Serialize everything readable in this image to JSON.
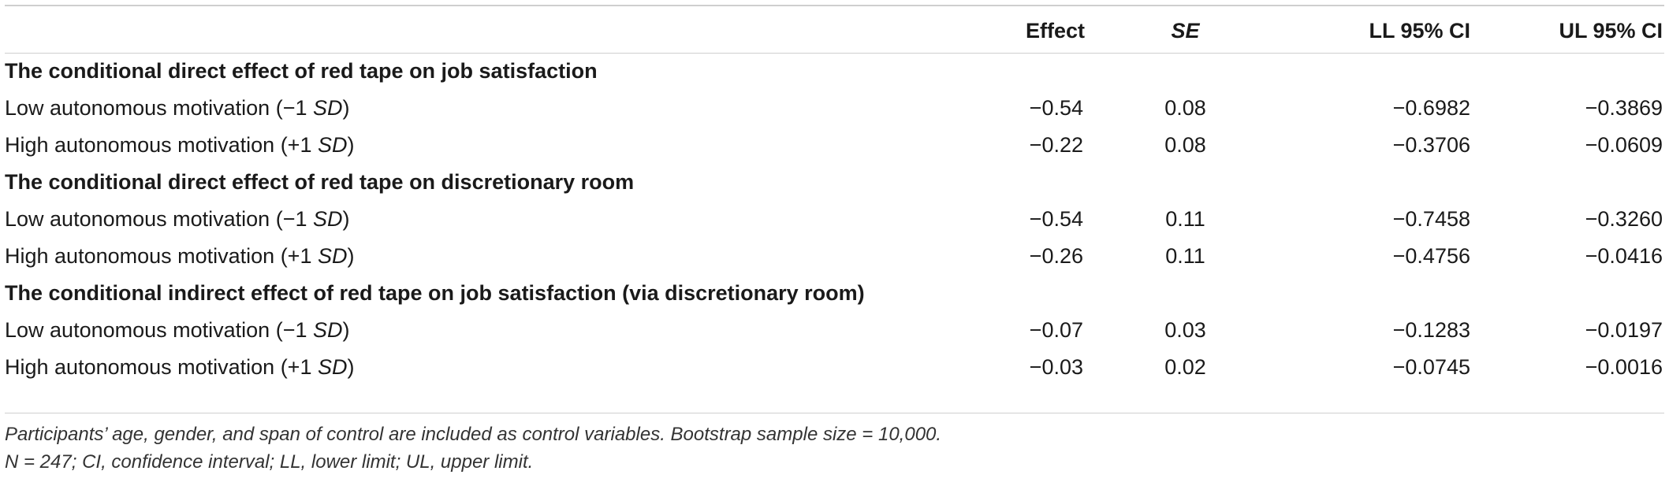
{
  "table": {
    "headers": {
      "label": "",
      "effect": "Effect",
      "se": "SE",
      "ll": "LL 95% CI",
      "ul": "UL 95% CI"
    },
    "sections": [
      {
        "title": "The conditional direct effect of red tape on job satisfaction",
        "rows": [
          {
            "label_pre": "Low autonomous motivation (−1 ",
            "label_sd": "SD",
            "label_post": ")",
            "effect": "−0.54",
            "se": "0.08",
            "ll": "−0.6982",
            "ul": "−0.3869"
          },
          {
            "label_pre": "High autonomous motivation (+1 ",
            "label_sd": "SD",
            "label_post": ")",
            "effect": "−0.22",
            "se": "0.08",
            "ll": "−0.3706",
            "ul": "−0.0609"
          }
        ]
      },
      {
        "title": "The conditional direct effect of red tape on discretionary room",
        "rows": [
          {
            "label_pre": "Low autonomous motivation (−1 ",
            "label_sd": "SD",
            "label_post": ")",
            "effect": "−0.54",
            "se": "0.11",
            "ll": "−0.7458",
            "ul": "−0.3260"
          },
          {
            "label_pre": "High autonomous motivation (+1 ",
            "label_sd": "SD",
            "label_post": ")",
            "effect": "−0.26",
            "se": "0.11",
            "ll": "−0.4756",
            "ul": "−0.0416"
          }
        ]
      },
      {
        "title": "The conditional indirect effect of red tape on job satisfaction (via discretionary room)",
        "rows": [
          {
            "label_pre": "Low autonomous motivation (−1 ",
            "label_sd": "SD",
            "label_post": ")",
            "effect": "−0.07",
            "se": "0.03",
            "ll": "−0.1283",
            "ul": "−0.0197"
          },
          {
            "label_pre": "High autonomous motivation (+1 ",
            "label_sd": "SD",
            "label_post": ")",
            "effect": "−0.03",
            "se": "0.02",
            "ll": "−0.0745",
            "ul": "−0.0016"
          }
        ]
      }
    ]
  },
  "notes": {
    "line1": "Participants’ age, gender, and span of control are included as control variables. Bootstrap sample size = 10,000.",
    "line2": "N = 247; CI, confidence interval; LL, lower limit; UL, upper limit."
  }
}
